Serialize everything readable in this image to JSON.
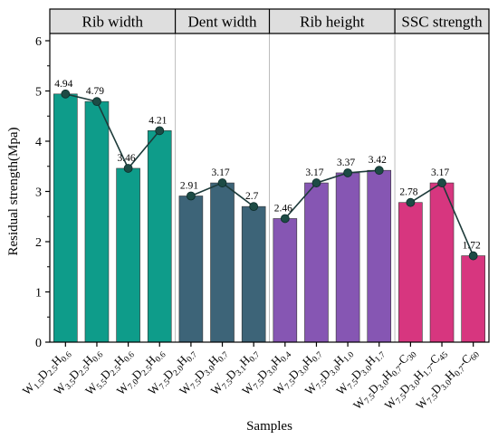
{
  "chart_data": {
    "type": "bar",
    "xlabel": "Samples",
    "ylabel": "Residual strength(Mpa)",
    "ylim": [
      0,
      6
    ],
    "yticks": [
      0,
      1,
      2,
      3,
      4,
      5,
      6
    ],
    "grid": false,
    "groups": [
      {
        "name": "Rib width",
        "color": "#0e9c8a",
        "categories": [
          {
            "base": "W",
            "sub": "1.5",
            "parts": [
              [
                "D",
                "2.5"
              ],
              [
                "H",
                "0.6"
              ]
            ],
            "value": 4.94
          },
          {
            "base": "W",
            "sub": "3.5",
            "parts": [
              [
                "D",
                "2.5"
              ],
              [
                "H",
                "0.6"
              ]
            ],
            "value": 4.79
          },
          {
            "base": "W",
            "sub": "5.5",
            "parts": [
              [
                "D",
                "2.5"
              ],
              [
                "H",
                "0.6"
              ]
            ],
            "value": 3.46
          },
          {
            "base": "W",
            "sub": "7.0",
            "parts": [
              [
                "D",
                "2.5"
              ],
              [
                "H",
                "0.6"
              ]
            ],
            "value": 4.21
          }
        ]
      },
      {
        "name": "Dent width",
        "color": "#3d6478",
        "categories": [
          {
            "base": "W",
            "sub": "7.5",
            "parts": [
              [
                "D",
                "2.0"
              ],
              [
                "H",
                "0.7"
              ]
            ],
            "value": 2.91
          },
          {
            "base": "W",
            "sub": "7.5",
            "parts": [
              [
                "D",
                "3.0"
              ],
              [
                "H",
                "0.7"
              ]
            ],
            "value": 3.17
          },
          {
            "base": "W",
            "sub": "7.5",
            "parts": [
              [
                "D",
                "3.1"
              ],
              [
                "H",
                "0.7"
              ]
            ],
            "value": 2.7
          }
        ]
      },
      {
        "name": "Rib height",
        "color": "#8656b3",
        "categories": [
          {
            "base": "W",
            "sub": "7.5",
            "parts": [
              [
                "D",
                "3.0"
              ],
              [
                "H",
                "0.4"
              ]
            ],
            "value": 2.46
          },
          {
            "base": "W",
            "sub": "7.5",
            "parts": [
              [
                "D",
                "3.0"
              ],
              [
                "H",
                "0.7"
              ]
            ],
            "value": 3.17
          },
          {
            "base": "W",
            "sub": "7.5",
            "parts": [
              [
                "D",
                "3.0"
              ],
              [
                "H",
                "1.0"
              ]
            ],
            "value": 3.37
          },
          {
            "base": "W",
            "sub": "7.5",
            "parts": [
              [
                "D",
                "3.0"
              ],
              [
                "H",
                "1.7"
              ]
            ],
            "value": 3.42
          }
        ]
      },
      {
        "name": "SSC strength",
        "color": "#d7367f",
        "categories": [
          {
            "base": "W",
            "sub": "7.5",
            "parts": [
              [
                "D",
                "3.0"
              ],
              [
                "H",
                "0.7"
              ]
            ],
            "suffix": "-C",
            "suffix_sub": "30",
            "value": 2.78
          },
          {
            "base": "W",
            "sub": "7.5",
            "parts": [
              [
                "D",
                "3.0"
              ],
              [
                "H",
                "1.7"
              ]
            ],
            "suffix": "-C",
            "suffix_sub": "45",
            "value": 3.17
          },
          {
            "base": "W",
            "sub": "7.5",
            "parts": [
              [
                "D",
                "3.0"
              ],
              [
                "H",
                "0.7"
              ]
            ],
            "suffix": "-C",
            "suffix_sub": "60",
            "value": 1.72
          }
        ]
      }
    ],
    "data_labels": [
      "4.94",
      "4.79",
      "3.46",
      "4.21",
      "2.91",
      "3.17",
      "2.7",
      "2.46",
      "3.17",
      "3.37",
      "3.42",
      "2.78",
      "3.17",
      "1.72"
    ],
    "line_color": "#1d3b3a",
    "marker_color": "#1d4b45"
  }
}
